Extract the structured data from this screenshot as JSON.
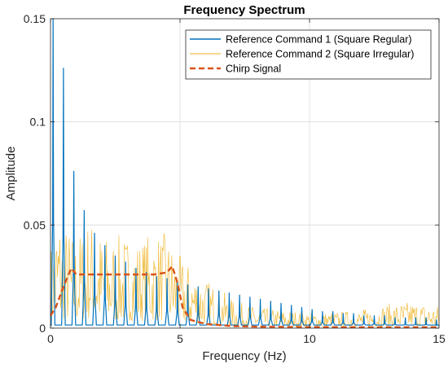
{
  "chart_data": {
    "type": "line",
    "title": "Frequency Spectrum",
    "xlabel": "Frequency (Hz)",
    "ylabel": "Amplitude",
    "xlim": [
      0,
      15
    ],
    "ylim": [
      0,
      0.15
    ],
    "x_ticks": [
      0,
      5,
      10,
      15
    ],
    "x_tick_labels": [
      "0",
      "5",
      "10",
      "15"
    ],
    "y_ticks": [
      0,
      0.05,
      0.1,
      0.15
    ],
    "y_tick_labels": [
      "0",
      "0.05",
      "0.1",
      "0.15"
    ],
    "grid": true,
    "legend_position": "top-right",
    "series": [
      {
        "name": "Reference Command 1 (Square Regular)",
        "color": "#0072BD",
        "style": "solid",
        "peaks": [
          {
            "x": 0.1,
            "y": 0.15
          },
          {
            "x": 0.5,
            "y": 0.126
          },
          {
            "x": 0.9,
            "y": 0.076
          },
          {
            "x": 1.3,
            "y": 0.057
          },
          {
            "x": 1.7,
            "y": 0.046
          },
          {
            "x": 2.1,
            "y": 0.04
          },
          {
            "x": 2.5,
            "y": 0.035
          },
          {
            "x": 2.9,
            "y": 0.032
          },
          {
            "x": 3.3,
            "y": 0.029
          },
          {
            "x": 3.7,
            "y": 0.027
          },
          {
            "x": 4.1,
            "y": 0.025
          },
          {
            "x": 4.5,
            "y": 0.024
          },
          {
            "x": 4.9,
            "y": 0.022
          },
          {
            "x": 5.3,
            "y": 0.021
          },
          {
            "x": 5.7,
            "y": 0.02
          },
          {
            "x": 6.1,
            "y": 0.019
          },
          {
            "x": 6.5,
            "y": 0.018
          },
          {
            "x": 6.9,
            "y": 0.017
          },
          {
            "x": 7.3,
            "y": 0.016
          },
          {
            "x": 7.7,
            "y": 0.015
          },
          {
            "x": 8.1,
            "y": 0.014
          },
          {
            "x": 8.5,
            "y": 0.013
          },
          {
            "x": 8.9,
            "y": 0.012
          },
          {
            "x": 9.3,
            "y": 0.011
          },
          {
            "x": 9.7,
            "y": 0.01
          },
          {
            "x": 10.1,
            "y": 0.009
          },
          {
            "x": 10.5,
            "y": 0.008
          },
          {
            "x": 10.9,
            "y": 0.008
          },
          {
            "x": 11.3,
            "y": 0.007
          },
          {
            "x": 11.7,
            "y": 0.007
          },
          {
            "x": 12.1,
            "y": 0.006
          },
          {
            "x": 12.5,
            "y": 0.006
          },
          {
            "x": 12.9,
            "y": 0.006
          },
          {
            "x": 13.3,
            "y": 0.005
          },
          {
            "x": 13.7,
            "y": 0.005
          },
          {
            "x": 14.1,
            "y": 0.005
          },
          {
            "x": 14.5,
            "y": 0.005
          },
          {
            "x": 14.9,
            "y": 0.004
          }
        ]
      },
      {
        "name": "Reference Command 2 (Square Irregular)",
        "color": "#EDB120",
        "style": "solid",
        "envelope": [
          {
            "x": 0.0,
            "y": 0.04
          },
          {
            "x": 0.3,
            "y": 0.06
          },
          {
            "x": 0.5,
            "y": 0.052
          },
          {
            "x": 1.0,
            "y": 0.045
          },
          {
            "x": 1.5,
            "y": 0.055
          },
          {
            "x": 2.0,
            "y": 0.046
          },
          {
            "x": 2.5,
            "y": 0.045
          },
          {
            "x": 3.0,
            "y": 0.046
          },
          {
            "x": 3.5,
            "y": 0.044
          },
          {
            "x": 4.0,
            "y": 0.048
          },
          {
            "x": 4.5,
            "y": 0.046
          },
          {
            "x": 5.0,
            "y": 0.035
          },
          {
            "x": 5.5,
            "y": 0.03
          },
          {
            "x": 6.0,
            "y": 0.024
          },
          {
            "x": 6.5,
            "y": 0.02
          },
          {
            "x": 7.0,
            "y": 0.014
          },
          {
            "x": 7.5,
            "y": 0.012
          },
          {
            "x": 8.0,
            "y": 0.01
          },
          {
            "x": 9.0,
            "y": 0.009
          },
          {
            "x": 10.0,
            "y": 0.008
          },
          {
            "x": 11.0,
            "y": 0.008
          },
          {
            "x": 12.0,
            "y": 0.009
          },
          {
            "x": 13.0,
            "y": 0.012
          },
          {
            "x": 14.0,
            "y": 0.013
          },
          {
            "x": 15.0,
            "y": 0.011
          }
        ]
      },
      {
        "name": "Chirp Signal",
        "color": "#D95319",
        "style": "dashed",
        "points": [
          {
            "x": 0.0,
            "y": 0.006
          },
          {
            "x": 0.2,
            "y": 0.01
          },
          {
            "x": 0.5,
            "y": 0.02
          },
          {
            "x": 0.8,
            "y": 0.029
          },
          {
            "x": 1.0,
            "y": 0.026
          },
          {
            "x": 1.5,
            "y": 0.026
          },
          {
            "x": 2.0,
            "y": 0.026
          },
          {
            "x": 2.5,
            "y": 0.026
          },
          {
            "x": 3.0,
            "y": 0.026
          },
          {
            "x": 3.5,
            "y": 0.026
          },
          {
            "x": 4.0,
            "y": 0.026
          },
          {
            "x": 4.5,
            "y": 0.027
          },
          {
            "x": 4.7,
            "y": 0.03
          },
          {
            "x": 4.9,
            "y": 0.022
          },
          {
            "x": 5.1,
            "y": 0.01
          },
          {
            "x": 5.4,
            "y": 0.004
          },
          {
            "x": 6.0,
            "y": 0.002
          },
          {
            "x": 7.0,
            "y": 0.001
          },
          {
            "x": 8.0,
            "y": 0.0007
          },
          {
            "x": 10.0,
            "y": 0.0005
          },
          {
            "x": 12.0,
            "y": 0.0004
          },
          {
            "x": 14.0,
            "y": 0.0004
          },
          {
            "x": 15.0,
            "y": 0.0004
          }
        ]
      }
    ]
  }
}
